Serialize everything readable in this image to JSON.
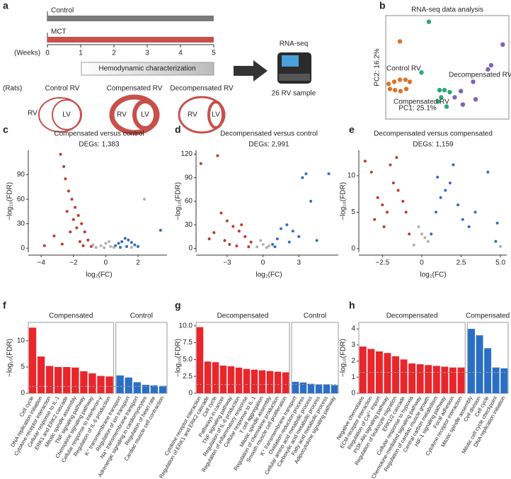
{
  "panel_a": {
    "label": "a",
    "timeline": {
      "rows": [
        "Control",
        "MCT"
      ],
      "unit": "(Weeks)",
      "ticks": [
        0,
        1,
        2,
        3,
        4,
        5
      ],
      "window": "Hemodynamic characterization"
    },
    "rats_label": "(Rats)",
    "hearts": [
      {
        "title": "Control RV",
        "rv": "RV",
        "lv": "LV"
      },
      {
        "title": "Compensated RV",
        "rv": "RV",
        "lv": "LV"
      },
      {
        "title": "Decompensated RV",
        "rv": "RV",
        "lv": "LV"
      }
    ],
    "sequencing": {
      "title": "RNA-seq",
      "samples": "26 RV sample"
    }
  },
  "chart_data": [
    {
      "type": "scatter",
      "label": "b",
      "title": "RNA-seq data analysis",
      "x_label": "PC1: 25.1%",
      "y_label": "PC2: 16.2%",
      "xlim": [
        0,
        100
      ],
      "ylim": [
        0,
        100
      ],
      "series": [
        {
          "name": "Control RV",
          "color": "#d9752b",
          "x": [
            11.5,
            2.3,
            6.9,
            11.5,
            16,
            19.5,
            3.4,
            7.5,
            12,
            16.7
          ],
          "values": [
            75,
            34,
            36,
            38,
            38,
            36,
            29,
            28,
            27,
            29
          ]
        },
        {
          "name": "Compensated RV",
          "color": "#2aa876",
          "x": [
            35,
            29,
            43.7,
            47.7,
            52,
            45,
            42.5,
            49.4
          ],
          "values": [
            94,
            45,
            28,
            28,
            26,
            21,
            17,
            12
          ]
        },
        {
          "name": "Decompensated RV",
          "color": "#7e63b8",
          "x": [
            95,
            83,
            85.6,
            71,
            61,
            56,
            62.6,
            73
          ],
          "values": [
            72,
            48,
            52,
            36,
            27,
            21,
            14,
            19
          ]
        }
      ]
    },
    {
      "type": "scatter",
      "label": "c",
      "title": "Compensated versus control",
      "subtitle": "DEGs: 1,383",
      "x_label": "log₂(FC)",
      "y_label": "−log₁₀(FDR)",
      "xlim": [
        -4.8,
        3.8
      ],
      "ylim": [
        -5,
        120
      ],
      "xticks": [
        {
          "value": -4,
          "label": "−4"
        },
        {
          "value": -2,
          "label": "−2"
        },
        0,
        2
      ],
      "yticks": [
        0,
        30,
        60,
        90
      ],
      "series": [
        {
          "color": "#c0392b",
          "x": [
            -2.8,
            -2.6,
            -2.5,
            -2.3,
            -2.1,
            -1.9,
            -1.7,
            -1.5,
            -1.3,
            -1.1,
            -2.4,
            -2.0,
            -1.8,
            -3.2,
            -3.8,
            -2.2,
            -1.6,
            -2.7,
            -1.4,
            -0.9
          ],
          "values": [
            115,
            100,
            85,
            70,
            60,
            50,
            40,
            30,
            20,
            10,
            45,
            35,
            25,
            15,
            3,
            20,
            8,
            5,
            3,
            2
          ]
        },
        {
          "color": "#2e6fbf",
          "x": [
            0.6,
            0.8,
            1.0,
            1.2,
            1.4,
            1.6,
            1.8,
            2.0,
            0.9,
            1.3,
            3.4
          ],
          "values": [
            3,
            6,
            8,
            12,
            10,
            7,
            4,
            2,
            1,
            2,
            22
          ]
        },
        {
          "color": "#b0b0b0",
          "x": [
            -0.6,
            -0.3,
            0,
            0.3,
            0.5,
            -0.8,
            0.2,
            -0.1,
            2.4,
            1.6
          ],
          "values": [
            1,
            3,
            6,
            2,
            1,
            4,
            8,
            0.5,
            60,
            1
          ]
        }
      ]
    },
    {
      "type": "scatter",
      "label": "d",
      "title": "Decompensated versus control",
      "subtitle": "DEGs: 2,991",
      "x_label": "log₂(FC)",
      "y_label": "−log₁₀(FDR)",
      "xlim": [
        -5.6,
        6.3
      ],
      "ylim": [
        -5,
        125
      ],
      "xticks": [
        {
          "value": -3,
          "label": "−3"
        },
        0,
        3
      ],
      "yticks": [
        0,
        30,
        60,
        90,
        120
      ],
      "series": [
        {
          "color": "#c0392b",
          "x": [
            -5.2,
            -3.8,
            -4.1,
            -3.5,
            -3,
            -2.5,
            -2,
            -1.5,
            -1,
            -3.2,
            -2.8,
            -2.2,
            -1.8,
            -1.2,
            -4.5
          ],
          "values": [
            108,
            118,
            20,
            45,
            35,
            28,
            22,
            15,
            8,
            10,
            5,
            3,
            30,
            2,
            12
          ]
        },
        {
          "color": "#2e6fbf",
          "x": [
            0.8,
            1.2,
            1.5,
            2,
            2.5,
            3,
            3.3,
            3.6,
            4.0,
            5.5,
            1.0,
            2.2,
            4.5
          ],
          "values": [
            5,
            12,
            25,
            30,
            22,
            15,
            90,
            95,
            60,
            95,
            2,
            8,
            10
          ]
        },
        {
          "color": "#b0b0b0",
          "x": [
            -0.5,
            0,
            0.5,
            -0.2,
            0.3
          ],
          "values": [
            2,
            5,
            3,
            10,
            1
          ]
        }
      ]
    },
    {
      "type": "scatter",
      "label": "e",
      "title": "Decompensated versus compensated",
      "subtitle": "DEGs: 1,159",
      "x_label": "log₂(FC)",
      "y_label": "−log₁₀(FDR)",
      "xlim": [
        -4,
        5.4
      ],
      "ylim": [
        -0.5,
        13.5
      ],
      "xticks": [
        {
          "value": -2.5,
          "label": "−2.5"
        },
        0,
        2.5,
        {
          "value": 5,
          "label": "5.0"
        }
      ],
      "yticks": [
        0,
        5,
        10
      ],
      "series": [
        {
          "color": "#c0392b",
          "x": [
            -3.6,
            -3.2,
            -2.8,
            -2.5,
            -2.2,
            -2,
            -1.8,
            -1.5,
            -1.2,
            -1,
            -0.8,
            -2.4,
            -1.6,
            -3.0
          ],
          "values": [
            12,
            10.5,
            7,
            6,
            5,
            11.5,
            9,
            8,
            6.5,
            5,
            2,
            3,
            12.5,
            4
          ]
        },
        {
          "color": "#2e6fbf",
          "x": [
            0.6,
            0.9,
            1.2,
            1.5,
            1.8,
            2,
            2.3,
            2.6,
            3,
            3.4,
            4.2,
            4.8,
            4.7,
            1.0
          ],
          "values": [
            2,
            5,
            7,
            8,
            9,
            11.5,
            6,
            4,
            3,
            5,
            10.5,
            3.5,
            1,
            9.8
          ]
        },
        {
          "color": "#b0b0b0",
          "x": [
            -0.5,
            0,
            0.4,
            -0.2,
            0.2,
            5.0
          ],
          "values": [
            0.5,
            2,
            1,
            3,
            1.5,
            0.3
          ]
        }
      ]
    },
    {
      "type": "bar",
      "label": "f",
      "y_label": "−log₁₀(FDR)",
      "ylim": [
        0,
        13.5
      ],
      "yticks": [
        0,
        5,
        10
      ],
      "hline": 1.3,
      "series": [
        {
          "name": "Compensated",
          "color": "#e8262b",
          "categories": [
            "Cell cycle",
            "DNA replication initiation",
            "Cytokine receptor interaction",
            "Cellular response to IL-1",
            "ERK1 and ERK2 cascade",
            "Mitotic spindle assembly",
            "TNF signaling pathway",
            "Chemokine signaling pathway",
            "Cellular response to interferon-γ",
            "Regulation of IL-6 production"
          ],
          "values": [
            12.5,
            7.0,
            5.2,
            5.0,
            5.0,
            4.9,
            4.2,
            3.8,
            3.3,
            3.2
          ]
        },
        {
          "name": "Control",
          "color": "#2a6fc4",
          "categories": [
            "K⁺ transmembrane transport",
            "Regulation of ion transport",
            "Na⁺ transmembrane transport",
            "Adrenergic signaling in cardiomyocytes",
            "Regulation of heart rate",
            "Cardiac muscle cell contraction"
          ],
          "values": [
            3.4,
            3.0,
            2.1,
            1.6,
            1.5,
            1.4
          ]
        }
      ]
    },
    {
      "type": "bar",
      "label": "g",
      "y_label": "−log₁₀(FDR)",
      "ylim": [
        0,
        10.5
      ],
      "yticks": [
        0,
        2.5,
        {
          "value": 5,
          "label": "5.0"
        },
        7.5,
        {
          "value": 10,
          "label": "10.0"
        }
      ],
      "hline": 1.3,
      "series": [
        {
          "name": "Decompensated",
          "color": "#e8262b",
          "categories": [
            "Cytokine receptor interaction",
            "Regulation of ERK1 and ERK2 cascade",
            "Cell cycle",
            "Pathways in cancer",
            "TNF signaling pathway",
            "Regulation of IL-6 production",
            "Regulation of inflammatory response",
            "Cellular response to IL-1",
            "T cell aggregation",
            "Mitotic spindle assembly",
            "Regulation of chemokine production",
            "Smooth muscle cell proliferation"
          ],
          "values": [
            9.8,
            4.7,
            4.6,
            4.1,
            4.0,
            3.8,
            3.6,
            3.5,
            3.4,
            3.3,
            3.2,
            3.1
          ]
        },
        {
          "name": "Control",
          "color": "#2a6fc4",
          "categories": [
            "K⁺ transmembrane transport",
            "Oxidation-reduction process",
            "Cellular amino acid metabolic process",
            "Carboxylic acid metabolic process",
            "Fatty acid metabolic process",
            "Adipocytokine signaling pathway"
          ],
          "values": [
            1.7,
            1.6,
            1.4,
            1.3,
            1.3,
            1.2
          ]
        }
      ]
    },
    {
      "type": "bar",
      "label": "h",
      "y_label": "−log₁₀(FDR)",
      "ylim": [
        0,
        4.4
      ],
      "yticks": [
        0,
        1,
        2,
        3,
        4
      ],
      "hline": 1.3,
      "series": [
        {
          "name": "Decompensated",
          "color": "#e8262b",
          "categories": [
            "Negative chemotaxis",
            "ECM-receptor interaction",
            "Regulation of Ca²⁺ import",
            "PI3K-Akt signaling pathway",
            "Regulation of leukocyte migration",
            "ERK1/2 cascade",
            "Cellular response to hypoxia",
            "Chemokine-mediated signaling pathway",
            "Regulation of cardiac muscle growth",
            "Central carbon metabolism",
            "HIF-1 signaling pathway",
            "Focal adhesion",
            "Cytokine receptor interaction"
          ],
          "values": [
            2.9,
            2.75,
            2.6,
            2.5,
            2.3,
            2.1,
            1.85,
            1.8,
            1.75,
            1.7,
            1.65,
            1.6,
            1.6
          ]
        },
        {
          "name": "Compensated",
          "color": "#2a6fc4",
          "categories": [
            "Mitotic spindle assembly",
            "Cell division",
            "Cell cycle",
            "Mitotic cell cycle checkpoint",
            "DNA replication initiation"
          ],
          "values": [
            4.0,
            3.6,
            2.8,
            1.6,
            1.55
          ]
        }
      ]
    }
  ]
}
